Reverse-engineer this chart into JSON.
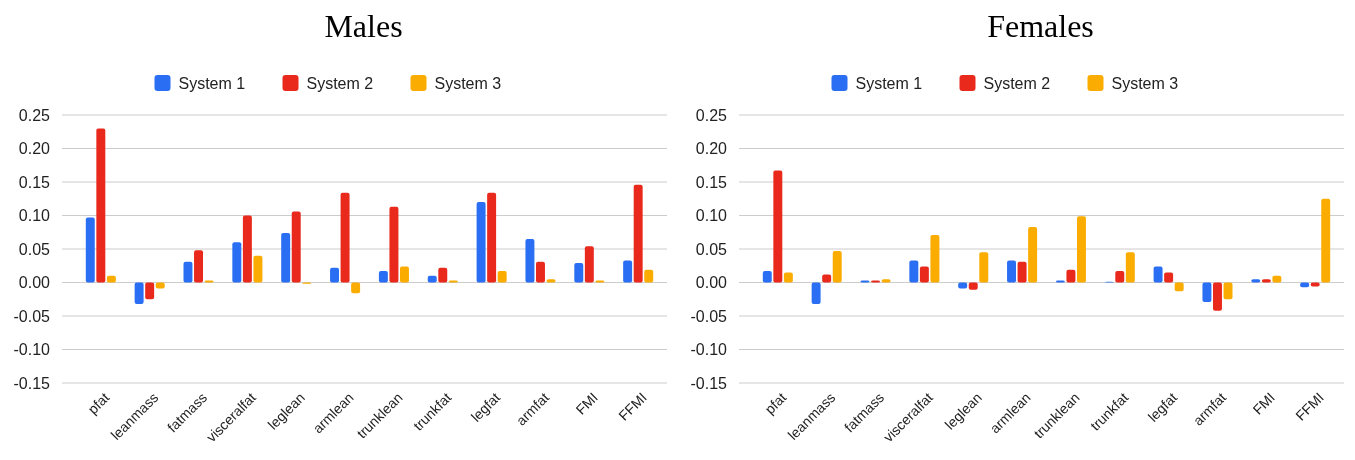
{
  "chart_data": [
    {
      "type": "bar",
      "title": "Males",
      "categories": [
        "pfat",
        "leanmass",
        "fatmass",
        "visceralfat",
        "leglean",
        "armlean",
        "trunklean",
        "trunkfat",
        "legfat",
        "armfat",
        "FMI",
        "FFMI"
      ],
      "series": [
        {
          "name": "System 1",
          "color": "#2a6ff3",
          "values": [
            0.097,
            -0.032,
            0.031,
            0.06,
            0.074,
            0.022,
            0.017,
            0.01,
            0.12,
            0.065,
            0.029,
            0.033
          ]
        },
        {
          "name": "System 2",
          "color": "#e8291c",
          "values": [
            0.23,
            -0.025,
            0.048,
            0.1,
            0.106,
            0.134,
            0.113,
            0.022,
            0.134,
            0.031,
            0.054,
            0.146
          ]
        },
        {
          "name": "System 3",
          "color": "#fbac00",
          "values": [
            0.01,
            -0.009,
            0.003,
            0.04,
            -0.002,
            -0.016,
            0.024,
            0.003,
            0.017,
            0.005,
            0.003,
            0.019
          ]
        }
      ],
      "ylim": [
        -0.15,
        0.25
      ],
      "yticks": [
        {
          "value": -0.15,
          "label": "-0.15"
        },
        {
          "value": -0.1,
          "label": "-0.10"
        },
        {
          "value": -0.05,
          "label": "-0.05"
        },
        {
          "value": 0,
          "label": "0.00"
        },
        {
          "value": 0.05,
          "label": "0.05"
        },
        {
          "value": 0.1,
          "label": "0.10"
        },
        {
          "value": 0.15,
          "label": "0.15"
        },
        {
          "value": 0.2,
          "label": "0.20"
        },
        {
          "value": 0.25,
          "label": "0.25"
        }
      ],
      "grid": "y",
      "legend": "top"
    },
    {
      "type": "bar",
      "title": "Females",
      "categories": [
        "pfat",
        "leanmass",
        "fatmass",
        "visceralfat",
        "leglean",
        "armlean",
        "trunklean",
        "trunkfat",
        "legfat",
        "armfat",
        "FMI",
        "FFMI"
      ],
      "series": [
        {
          "name": "System 1",
          "color": "#2a6ff3",
          "values": [
            0.017,
            -0.032,
            0.003,
            0.033,
            -0.009,
            0.033,
            0.003,
            0.001,
            0.024,
            -0.029,
            0.005,
            -0.007
          ]
        },
        {
          "name": "System 2",
          "color": "#e8291c",
          "values": [
            0.167,
            0.012,
            0.003,
            0.024,
            -0.011,
            0.031,
            0.019,
            0.017,
            0.015,
            -0.042,
            0.005,
            -0.006
          ]
        },
        {
          "name": "System 3",
          "color": "#fbac00",
          "values": [
            0.015,
            0.047,
            0.005,
            0.071,
            0.045,
            0.083,
            0.099,
            0.045,
            -0.013,
            -0.025,
            0.01,
            0.125
          ]
        }
      ],
      "ylim": [
        -0.15,
        0.25
      ],
      "yticks": [
        {
          "value": -0.15,
          "label": "-0.15"
        },
        {
          "value": -0.1,
          "label": "-0.10"
        },
        {
          "value": -0.05,
          "label": "-0.05"
        },
        {
          "value": 0,
          "label": "0.00"
        },
        {
          "value": 0.05,
          "label": "0.05"
        },
        {
          "value": 0.1,
          "label": "0.10"
        },
        {
          "value": 0.15,
          "label": "0.15"
        },
        {
          "value": 0.2,
          "label": "0.20"
        },
        {
          "value": 0.25,
          "label": "0.25"
        }
      ],
      "grid": "y",
      "legend": "top"
    }
  ]
}
